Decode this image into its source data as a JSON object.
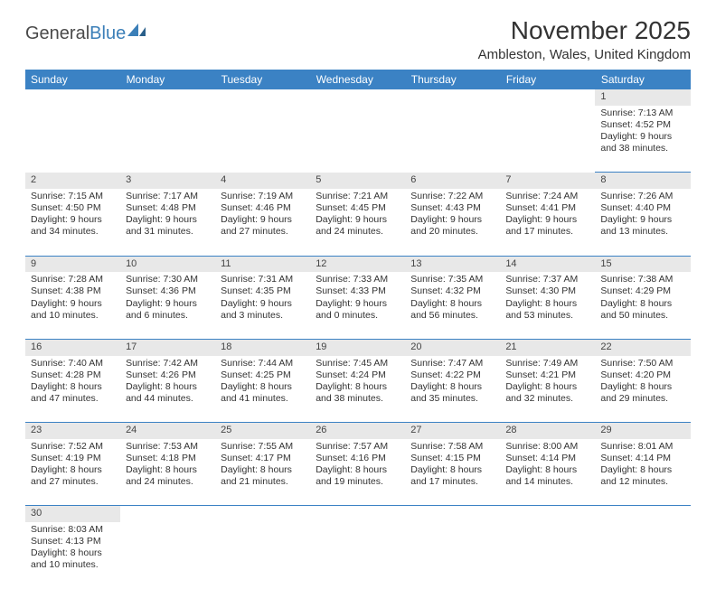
{
  "logo": {
    "text1": "General",
    "text2": "Blue"
  },
  "header": {
    "title": "November 2025",
    "location": "Ambleston, Wales, United Kingdom"
  },
  "styling": {
    "header_bg": "#3b82c4",
    "header_fg": "#ffffff",
    "daynum_bg": "#e8e8e8",
    "border_color": "#3b82c4",
    "body_font_size": 10.5,
    "title_font_size": 28,
    "location_font_size": 15,
    "th_font_size": 12
  },
  "days_of_week": [
    "Sunday",
    "Monday",
    "Tuesday",
    "Wednesday",
    "Thursday",
    "Friday",
    "Saturday"
  ],
  "weeks": [
    [
      null,
      null,
      null,
      null,
      null,
      null,
      {
        "n": "1",
        "sr": "Sunrise: 7:13 AM",
        "ss": "Sunset: 4:52 PM",
        "d1": "Daylight: 9 hours",
        "d2": "and 38 minutes."
      }
    ],
    [
      {
        "n": "2",
        "sr": "Sunrise: 7:15 AM",
        "ss": "Sunset: 4:50 PM",
        "d1": "Daylight: 9 hours",
        "d2": "and 34 minutes."
      },
      {
        "n": "3",
        "sr": "Sunrise: 7:17 AM",
        "ss": "Sunset: 4:48 PM",
        "d1": "Daylight: 9 hours",
        "d2": "and 31 minutes."
      },
      {
        "n": "4",
        "sr": "Sunrise: 7:19 AM",
        "ss": "Sunset: 4:46 PM",
        "d1": "Daylight: 9 hours",
        "d2": "and 27 minutes."
      },
      {
        "n": "5",
        "sr": "Sunrise: 7:21 AM",
        "ss": "Sunset: 4:45 PM",
        "d1": "Daylight: 9 hours",
        "d2": "and 24 minutes."
      },
      {
        "n": "6",
        "sr": "Sunrise: 7:22 AM",
        "ss": "Sunset: 4:43 PM",
        "d1": "Daylight: 9 hours",
        "d2": "and 20 minutes."
      },
      {
        "n": "7",
        "sr": "Sunrise: 7:24 AM",
        "ss": "Sunset: 4:41 PM",
        "d1": "Daylight: 9 hours",
        "d2": "and 17 minutes."
      },
      {
        "n": "8",
        "sr": "Sunrise: 7:26 AM",
        "ss": "Sunset: 4:40 PM",
        "d1": "Daylight: 9 hours",
        "d2": "and 13 minutes."
      }
    ],
    [
      {
        "n": "9",
        "sr": "Sunrise: 7:28 AM",
        "ss": "Sunset: 4:38 PM",
        "d1": "Daylight: 9 hours",
        "d2": "and 10 minutes."
      },
      {
        "n": "10",
        "sr": "Sunrise: 7:30 AM",
        "ss": "Sunset: 4:36 PM",
        "d1": "Daylight: 9 hours",
        "d2": "and 6 minutes."
      },
      {
        "n": "11",
        "sr": "Sunrise: 7:31 AM",
        "ss": "Sunset: 4:35 PM",
        "d1": "Daylight: 9 hours",
        "d2": "and 3 minutes."
      },
      {
        "n": "12",
        "sr": "Sunrise: 7:33 AM",
        "ss": "Sunset: 4:33 PM",
        "d1": "Daylight: 9 hours",
        "d2": "and 0 minutes."
      },
      {
        "n": "13",
        "sr": "Sunrise: 7:35 AM",
        "ss": "Sunset: 4:32 PM",
        "d1": "Daylight: 8 hours",
        "d2": "and 56 minutes."
      },
      {
        "n": "14",
        "sr": "Sunrise: 7:37 AM",
        "ss": "Sunset: 4:30 PM",
        "d1": "Daylight: 8 hours",
        "d2": "and 53 minutes."
      },
      {
        "n": "15",
        "sr": "Sunrise: 7:38 AM",
        "ss": "Sunset: 4:29 PM",
        "d1": "Daylight: 8 hours",
        "d2": "and 50 minutes."
      }
    ],
    [
      {
        "n": "16",
        "sr": "Sunrise: 7:40 AM",
        "ss": "Sunset: 4:28 PM",
        "d1": "Daylight: 8 hours",
        "d2": "and 47 minutes."
      },
      {
        "n": "17",
        "sr": "Sunrise: 7:42 AM",
        "ss": "Sunset: 4:26 PM",
        "d1": "Daylight: 8 hours",
        "d2": "and 44 minutes."
      },
      {
        "n": "18",
        "sr": "Sunrise: 7:44 AM",
        "ss": "Sunset: 4:25 PM",
        "d1": "Daylight: 8 hours",
        "d2": "and 41 minutes."
      },
      {
        "n": "19",
        "sr": "Sunrise: 7:45 AM",
        "ss": "Sunset: 4:24 PM",
        "d1": "Daylight: 8 hours",
        "d2": "and 38 minutes."
      },
      {
        "n": "20",
        "sr": "Sunrise: 7:47 AM",
        "ss": "Sunset: 4:22 PM",
        "d1": "Daylight: 8 hours",
        "d2": "and 35 minutes."
      },
      {
        "n": "21",
        "sr": "Sunrise: 7:49 AM",
        "ss": "Sunset: 4:21 PM",
        "d1": "Daylight: 8 hours",
        "d2": "and 32 minutes."
      },
      {
        "n": "22",
        "sr": "Sunrise: 7:50 AM",
        "ss": "Sunset: 4:20 PM",
        "d1": "Daylight: 8 hours",
        "d2": "and 29 minutes."
      }
    ],
    [
      {
        "n": "23",
        "sr": "Sunrise: 7:52 AM",
        "ss": "Sunset: 4:19 PM",
        "d1": "Daylight: 8 hours",
        "d2": "and 27 minutes."
      },
      {
        "n": "24",
        "sr": "Sunrise: 7:53 AM",
        "ss": "Sunset: 4:18 PM",
        "d1": "Daylight: 8 hours",
        "d2": "and 24 minutes."
      },
      {
        "n": "25",
        "sr": "Sunrise: 7:55 AM",
        "ss": "Sunset: 4:17 PM",
        "d1": "Daylight: 8 hours",
        "d2": "and 21 minutes."
      },
      {
        "n": "26",
        "sr": "Sunrise: 7:57 AM",
        "ss": "Sunset: 4:16 PM",
        "d1": "Daylight: 8 hours",
        "d2": "and 19 minutes."
      },
      {
        "n": "27",
        "sr": "Sunrise: 7:58 AM",
        "ss": "Sunset: 4:15 PM",
        "d1": "Daylight: 8 hours",
        "d2": "and 17 minutes."
      },
      {
        "n": "28",
        "sr": "Sunrise: 8:00 AM",
        "ss": "Sunset: 4:14 PM",
        "d1": "Daylight: 8 hours",
        "d2": "and 14 minutes."
      },
      {
        "n": "29",
        "sr": "Sunrise: 8:01 AM",
        "ss": "Sunset: 4:14 PM",
        "d1": "Daylight: 8 hours",
        "d2": "and 12 minutes."
      }
    ],
    [
      {
        "n": "30",
        "sr": "Sunrise: 8:03 AM",
        "ss": "Sunset: 4:13 PM",
        "d1": "Daylight: 8 hours",
        "d2": "and 10 minutes."
      },
      null,
      null,
      null,
      null,
      null,
      null
    ]
  ]
}
